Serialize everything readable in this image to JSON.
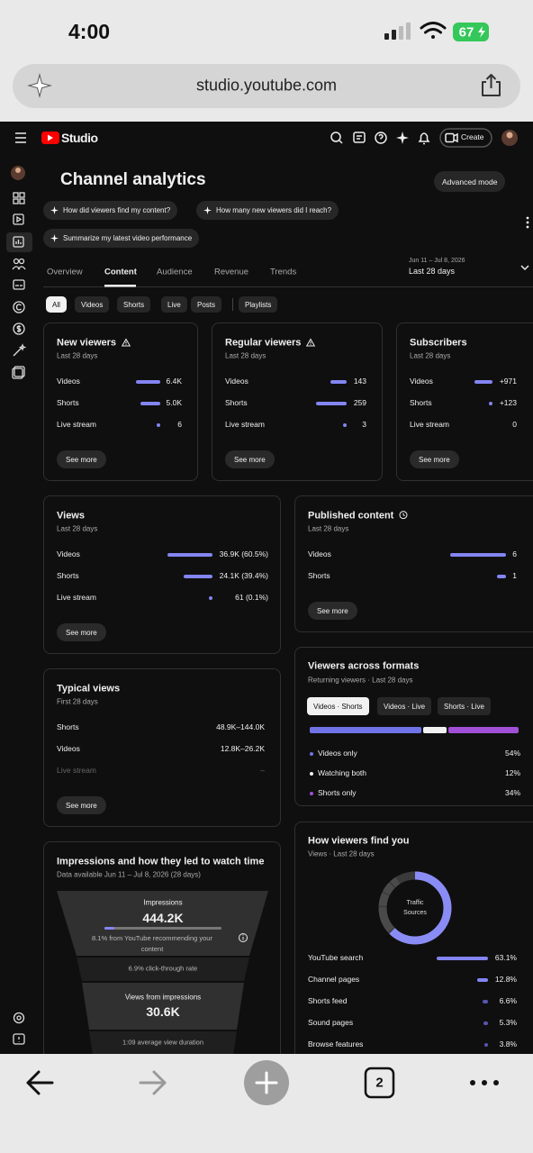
{
  "status_bar": {
    "time": "4:00",
    "battery": "67"
  },
  "browser": {
    "url": "studio.youtube.com",
    "tab_count": "2"
  },
  "header": {
    "logo_text": "Studio",
    "create_button": "Create"
  },
  "page": {
    "title": "Channel analytics",
    "advanced_mode": "Advanced mode",
    "prompts": [
      "How did viewers find my content?",
      "How many new viewers did I reach?",
      "Summarize my latest video performance"
    ],
    "tabs": [
      "Overview",
      "Content",
      "Audience",
      "Revenue",
      "Trends"
    ],
    "date_range": "Jun 11 – Jul 8, 2026",
    "date_label": "Last 28 days",
    "filters": [
      "All",
      "Videos",
      "Shorts",
      "Live",
      "Posts",
      "Playlists"
    ]
  },
  "cards": [
    {
      "title": "New viewers",
      "subtitle": "Last 28 days",
      "rows": [
        {
          "label": "Videos",
          "value": "6.4K"
        },
        {
          "label": "Shorts",
          "value": "5.0K"
        },
        {
          "label": "Live stream",
          "value": "6"
        }
      ],
      "button": "See more"
    },
    {
      "title": "Regular viewers",
      "subtitle": "Last 28 days",
      "rows": [
        {
          "label": "Videos",
          "value": "143"
        },
        {
          "label": "Shorts",
          "value": "259"
        },
        {
          "label": "Live stream",
          "value": "3"
        }
      ],
      "button": "See more"
    },
    {
      "title": "Subscribers",
      "subtitle": "Last 28 days",
      "rows": [
        {
          "label": "Videos",
          "value": "+971"
        },
        {
          "label": "Shorts",
          "value": "+123"
        },
        {
          "label": "Live stream",
          "value": "0"
        }
      ],
      "button": "See more"
    },
    {
      "title": "Views",
      "subtitle": "Last 28 days",
      "rows": [
        {
          "label": "Videos",
          "value": "36.9K (60.5%)"
        },
        {
          "label": "Shorts",
          "value": "24.1K (39.4%)"
        },
        {
          "label": "Live stream",
          "value": "61 (0.1%)"
        }
      ],
      "button": "See more"
    },
    {
      "title": "Published content",
      "subtitle": "Last 28 days",
      "rows": [
        {
          "label": "Videos",
          "value": "6"
        },
        {
          "label": "Shorts",
          "value": "1"
        }
      ],
      "button": "See more"
    },
    {
      "title": "Typical views",
      "subtitle": "First 28 days",
      "rows": [
        {
          "label": "Shorts",
          "value": "48.9K–144.0K"
        },
        {
          "label": "Videos",
          "value": "12.8K–26.2K"
        },
        {
          "label": "Live stream",
          "value": "–"
        }
      ],
      "button": "See more"
    }
  ],
  "formats": {
    "title": "Viewers across formats",
    "subtitle": "Returning viewers · Last 28 days",
    "tabs": [
      "Videos · Shorts",
      "Videos · Live",
      "Shorts · Live"
    ],
    "rows": [
      {
        "label": "Videos only",
        "value": "54%"
      },
      {
        "label": "Watching both",
        "value": "12%"
      },
      {
        "label": "Shorts only",
        "value": "34%"
      }
    ]
  },
  "traffic": {
    "title": "How viewers find you",
    "subtitle": "Views · Last 28 days",
    "center_label": "Traffic Sources",
    "rows": [
      {
        "label": "YouTube search",
        "value": "63.1%"
      },
      {
        "label": "Channel pages",
        "value": "12.8%"
      },
      {
        "label": "Shorts feed",
        "value": "6.6%"
      },
      {
        "label": "Sound pages",
        "value": "5.3%"
      },
      {
        "label": "Browse features",
        "value": "3.8%"
      }
    ]
  },
  "impressions": {
    "title": "Impressions and how they led to watch time",
    "subtitle": "Data available Jun 11 – Jul 8, 2026 (28 days)",
    "impressions_label": "Impressions",
    "impressions_value": "444.2K",
    "recommend_note": "8.1% from YouTube recommending your content",
    "ctr": "6.9% click-through rate",
    "views_label": "Views from impressions",
    "views_value": "30.6K",
    "avg_duration": "1:09 average view duration"
  }
}
